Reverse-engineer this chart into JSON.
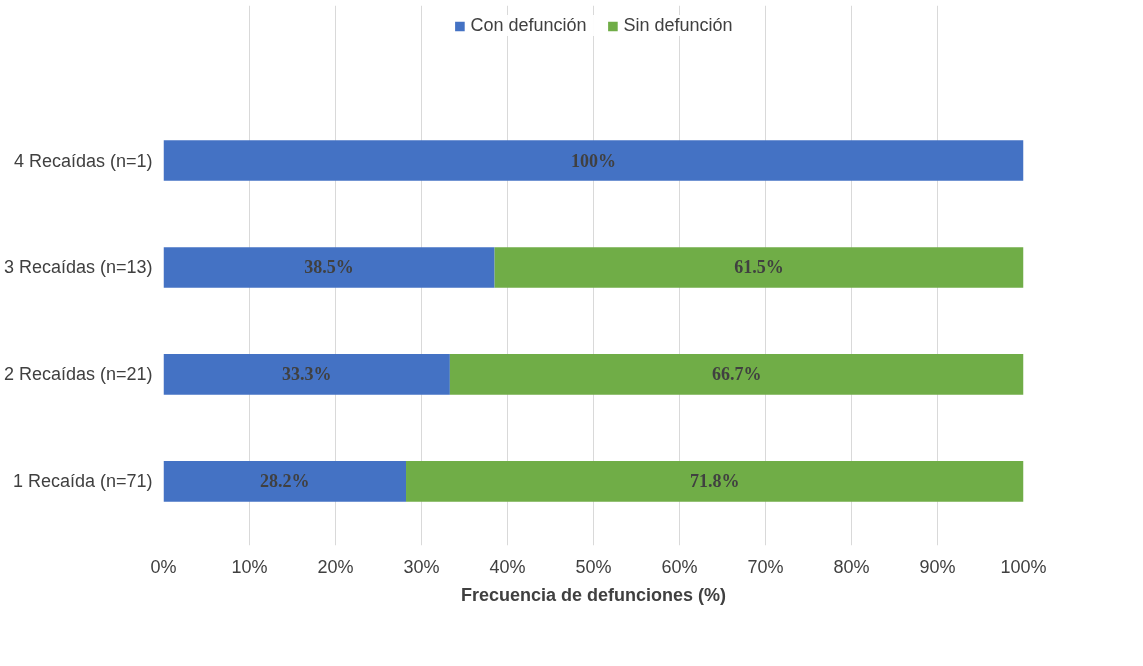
{
  "chart_data": {
    "type": "bar",
    "orientation": "horizontal",
    "stacked": true,
    "categories": [
      "4 Recaídas (n=1)",
      "3 Recaídas (n=13)",
      "2 Recaídas (n=21)",
      "1 Recaída (n=71)"
    ],
    "series": [
      {
        "name": "Con defunción",
        "color": "#4472c4",
        "values": [
          100,
          38.5,
          33.3,
          28.2
        ],
        "value_labels": [
          "100%",
          "38.5%",
          "33.3%",
          "28.2%"
        ]
      },
      {
        "name": "Sin defunción",
        "color": "#70ad47",
        "values": [
          null,
          61.5,
          66.7,
          71.8
        ],
        "value_labels": [
          null,
          "61.5%",
          "66.7%",
          "71.8%"
        ]
      }
    ],
    "xlabel": "Frecuencia de defunciones (%)",
    "xlim": [
      0,
      100
    ],
    "xticks": [
      {
        "value": 0,
        "label": "0%"
      },
      {
        "value": 10,
        "label": "10%"
      },
      {
        "value": 20,
        "label": "20%"
      },
      {
        "value": 30,
        "label": "30%"
      },
      {
        "value": 40,
        "label": "40%"
      },
      {
        "value": 50,
        "label": "50%"
      },
      {
        "value": 60,
        "label": "60%"
      },
      {
        "value": 70,
        "label": "70%"
      },
      {
        "value": 80,
        "label": "80%"
      },
      {
        "value": 90,
        "label": "90%"
      },
      {
        "value": 100,
        "label": "100%"
      }
    ],
    "grid": "x",
    "legend": "top"
  }
}
